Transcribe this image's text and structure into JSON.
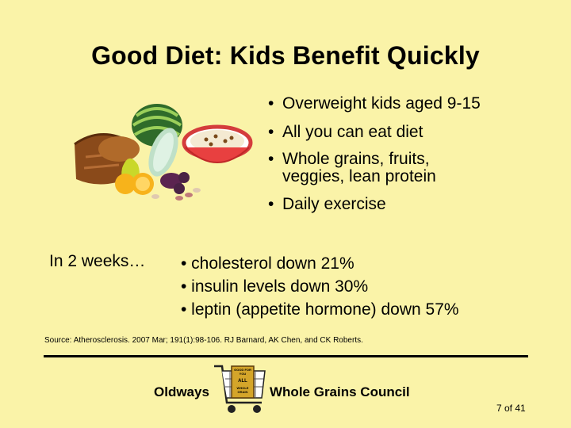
{
  "title": "Good Diet: Kids Benefit Quickly",
  "bullets": [
    "Overweight kids aged 9-15",
    "All you can eat diet",
    "Whole grains, fruits, veggies, lean protein",
    "Daily exercise"
  ],
  "results_lead": "In 2 weeks…",
  "results": [
    "• cholesterol down 21%",
    "• insulin levels down 30%",
    "• leptin (appetite hormone) down 57%"
  ],
  "source": "Source: Atherosclerosis. 2007 Mar; 191(1):98-106. RJ Barnard, AK Chen,  and CK Roberts.",
  "footer": {
    "left_label": "Oldways",
    "right_label": "Whole Grains Council",
    "cart_text": [
      "GOOD FOR",
      "YOU",
      "ALL",
      "WHOLE",
      "GRAIN"
    ],
    "page": "7 of 41"
  },
  "bullet_char": "•",
  "colors": {
    "background": "#faf3a8",
    "text": "#000000"
  },
  "icons": {
    "illustration": "food-illustration",
    "logo": "whole-grain-stamp-cart-icon"
  }
}
